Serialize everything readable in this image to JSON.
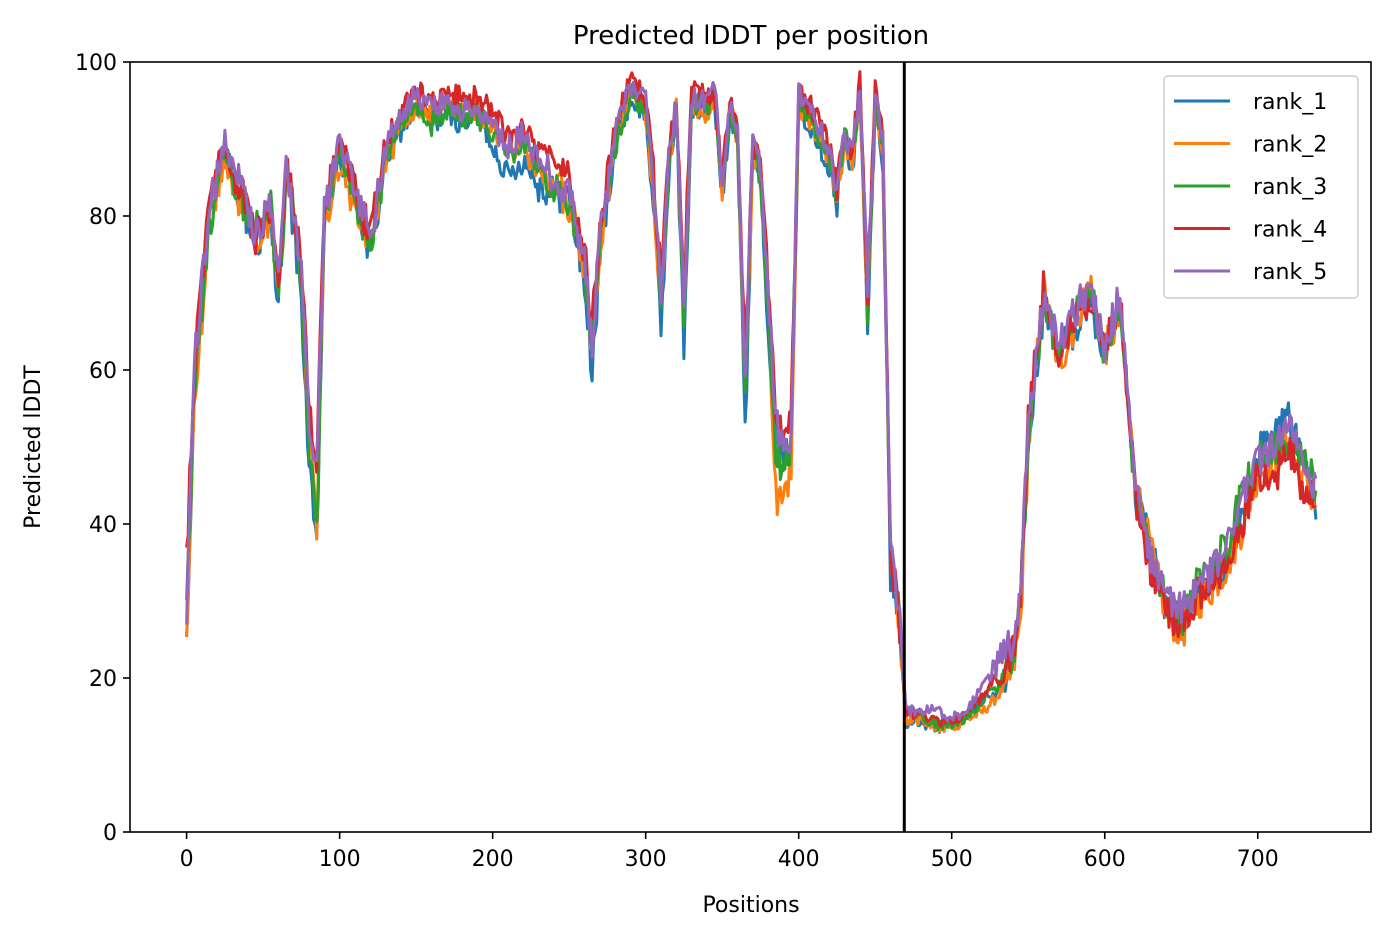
{
  "chart_data": {
    "type": "line",
    "title": "Predicted lDDT per position",
    "xlabel": "Positions",
    "ylabel": "Predicted lDDT",
    "xlim": [
      -37,
      774
    ],
    "ylim": [
      0,
      100
    ],
    "xticks": [
      0,
      100,
      200,
      300,
      400,
      500,
      600,
      700
    ],
    "yticks": [
      0,
      20,
      40,
      60,
      80,
      100
    ],
    "grid": false,
    "legend_position": "top-right",
    "vline_x": 469,
    "series": [
      {
        "name": "rank_1",
        "color": "#1f77b4",
        "offset": -0.8,
        "x": [
          0,
          5,
          15,
          25,
          35,
          45,
          55,
          60,
          65,
          70,
          75,
          80,
          85,
          90,
          95,
          100,
          110,
          120,
          130,
          140,
          150,
          160,
          170,
          180,
          190,
          200,
          210,
          220,
          230,
          240,
          250,
          260,
          265,
          270,
          280,
          290,
          300,
          305,
          310,
          315,
          320,
          325,
          330,
          340,
          345,
          350,
          355,
          360,
          365,
          370,
          375,
          380,
          385,
          390,
          395,
          400,
          410,
          420,
          425,
          430,
          435,
          440,
          445,
          450,
          455,
          460,
          465,
          470,
          480,
          490,
          500,
          510,
          520,
          530,
          540,
          545,
          550,
          560,
          570,
          580,
          590,
          600,
          610,
          620,
          630,
          640,
          650,
          660,
          670,
          680,
          690,
          700,
          710,
          720,
          730,
          738
        ],
        "y": [
          24,
          57,
          82,
          89,
          83,
          77,
          80,
          70,
          86,
          79,
          70,
          48,
          37,
          80,
          84,
          88,
          84,
          75,
          88,
          92,
          95,
          93,
          94,
          93,
          94,
          90,
          86,
          88,
          85,
          84,
          83,
          72,
          60,
          75,
          90,
          96,
          94,
          82,
          66,
          86,
          94,
          64,
          95,
          94,
          96,
          83,
          94,
          92,
          52,
          90,
          86,
          67,
          53,
          48,
          52,
          95,
          92,
          87,
          82,
          90,
          87,
          96,
          66,
          95,
          88,
          34,
          30,
          15,
          15,
          14,
          15,
          16,
          18,
          19,
          23,
          32,
          52,
          68,
          63,
          66,
          70,
          62,
          68,
          44,
          38,
          30,
          28,
          31,
          33,
          36,
          42,
          50,
          52,
          55,
          48,
          42
        ]
      },
      {
        "name": "rank_2",
        "color": "#ff7f0e",
        "offset": -0.4,
        "x": [
          0,
          5,
          15,
          25,
          35,
          45,
          55,
          60,
          65,
          70,
          75,
          80,
          85,
          90,
          95,
          100,
          110,
          120,
          130,
          140,
          150,
          160,
          170,
          180,
          190,
          200,
          210,
          220,
          230,
          240,
          250,
          260,
          265,
          270,
          280,
          290,
          300,
          305,
          310,
          315,
          320,
          325,
          330,
          340,
          345,
          350,
          355,
          360,
          365,
          370,
          375,
          380,
          385,
          390,
          395,
          400,
          410,
          420,
          425,
          430,
          435,
          440,
          445,
          450,
          455,
          460,
          465,
          470,
          480,
          490,
          500,
          510,
          520,
          530,
          540,
          545,
          550,
          560,
          570,
          580,
          590,
          600,
          610,
          620,
          630,
          640,
          650,
          660,
          670,
          680,
          690,
          700,
          710,
          720,
          730,
          738
        ],
        "y": [
          27,
          55,
          80,
          88,
          82,
          76,
          80,
          72,
          85,
          80,
          72,
          52,
          40,
          79,
          84,
          87,
          82,
          76,
          87,
          92,
          95,
          93,
          95,
          94,
          94,
          92,
          89,
          89,
          86,
          85,
          82,
          74,
          63,
          76,
          90,
          96,
          94,
          83,
          70,
          87,
          94,
          69,
          95,
          94,
          96,
          84,
          94,
          91,
          58,
          88,
          86,
          70,
          44,
          42,
          48,
          95,
          92,
          88,
          83,
          90,
          87,
          96,
          69,
          95,
          89,
          36,
          29,
          15,
          15,
          14,
          14,
          15,
          16,
          18,
          21,
          28,
          50,
          71,
          61,
          66,
          72,
          63,
          67,
          46,
          37,
          29,
          26,
          30,
          32,
          35,
          40,
          47,
          48,
          51,
          46,
          43
        ]
      },
      {
        "name": "rank_3",
        "color": "#2ca02c",
        "offset": 0,
        "x": [
          0,
          5,
          15,
          25,
          35,
          45,
          55,
          60,
          65,
          70,
          75,
          80,
          85,
          90,
          95,
          100,
          110,
          120,
          130,
          140,
          150,
          160,
          170,
          180,
          190,
          200,
          210,
          220,
          230,
          240,
          250,
          260,
          265,
          270,
          280,
          290,
          300,
          305,
          310,
          315,
          320,
          325,
          330,
          340,
          345,
          350,
          355,
          360,
          365,
          370,
          375,
          380,
          385,
          390,
          395,
          400,
          410,
          420,
          425,
          430,
          435,
          440,
          445,
          450,
          455,
          460,
          465,
          470,
          480,
          490,
          500,
          510,
          520,
          530,
          540,
          545,
          550,
          560,
          570,
          580,
          590,
          600,
          610,
          620,
          630,
          640,
          650,
          660,
          670,
          680,
          690,
          700,
          710,
          720,
          730,
          738
        ],
        "y": [
          30,
          58,
          79,
          89,
          82,
          78,
          81,
          70,
          84,
          81,
          71,
          50,
          38,
          81,
          84,
          89,
          83,
          75,
          88,
          92,
          94,
          92,
          94,
          93,
          93,
          91,
          87,
          90,
          86,
          84,
          82,
          73,
          62,
          77,
          89,
          96,
          94,
          84,
          68,
          86,
          94,
          67,
          95,
          94,
          96,
          84,
          93,
          91,
          55,
          89,
          85,
          68,
          50,
          46,
          50,
          95,
          92,
          88,
          83,
          91,
          88,
          96,
          68,
          95,
          89,
          37,
          31,
          16,
          15,
          14,
          14,
          15,
          17,
          19,
          22,
          30,
          51,
          69,
          62,
          67,
          71,
          62,
          69,
          44,
          36,
          30,
          27,
          32,
          35,
          37,
          44,
          48,
          50,
          49,
          50,
          44
        ]
      },
      {
        "name": "rank_4",
        "color": "#d62728",
        "offset": 0.4,
        "x": [
          0,
          5,
          15,
          25,
          35,
          45,
          55,
          60,
          65,
          70,
          75,
          80,
          85,
          90,
          95,
          100,
          110,
          120,
          130,
          140,
          150,
          160,
          170,
          180,
          190,
          200,
          210,
          220,
          230,
          240,
          250,
          260,
          265,
          270,
          280,
          290,
          300,
          305,
          310,
          315,
          320,
          325,
          330,
          340,
          345,
          350,
          355,
          360,
          365,
          370,
          375,
          380,
          385,
          390,
          395,
          400,
          410,
          420,
          425,
          430,
          435,
          440,
          445,
          450,
          455,
          460,
          465,
          470,
          480,
          490,
          500,
          510,
          520,
          530,
          540,
          545,
          550,
          560,
          570,
          580,
          590,
          600,
          610,
          620,
          630,
          640,
          650,
          660,
          670,
          680,
          690,
          700,
          710,
          720,
          730,
          738
        ],
        "y": [
          35,
          60,
          83,
          89,
          83,
          77,
          81,
          71,
          86,
          81,
          73,
          55,
          47,
          81,
          85,
          90,
          83,
          77,
          89,
          93,
          96,
          94,
          96,
          95,
          95,
          93,
          90,
          91,
          88,
          87,
          85,
          75,
          65,
          78,
          91,
          97,
          95,
          85,
          71,
          88,
          95,
          70,
          96,
          95,
          96,
          85,
          94,
          91,
          60,
          89,
          87,
          70,
          55,
          50,
          53,
          96,
          93,
          89,
          84,
          91,
          88,
          97,
          70,
          96,
          90,
          35,
          29,
          15,
          15,
          14,
          14,
          15,
          17,
          20,
          23,
          30,
          53,
          70,
          62,
          66,
          69,
          62,
          69,
          43,
          34,
          29,
          26,
          30,
          32,
          35,
          40,
          46,
          45,
          50,
          44,
          42
        ]
      },
      {
        "name": "rank_5",
        "color": "#9467bd",
        "offset": 0.8,
        "x": [
          0,
          5,
          15,
          25,
          35,
          45,
          55,
          60,
          65,
          70,
          75,
          80,
          85,
          90,
          95,
          100,
          110,
          120,
          130,
          140,
          150,
          160,
          170,
          180,
          190,
          200,
          210,
          220,
          230,
          240,
          250,
          260,
          265,
          270,
          280,
          290,
          300,
          305,
          310,
          315,
          320,
          325,
          330,
          340,
          345,
          350,
          355,
          360,
          365,
          370,
          375,
          380,
          385,
          390,
          395,
          400,
          410,
          420,
          425,
          430,
          435,
          440,
          445,
          450,
          455,
          460,
          465,
          470,
          480,
          490,
          500,
          510,
          520,
          530,
          540,
          545,
          550,
          560,
          570,
          580,
          590,
          600,
          610,
          620,
          630,
          640,
          650,
          660,
          670,
          680,
          690,
          700,
          710,
          720,
          730,
          738
        ],
        "y": [
          28,
          60,
          80,
          89,
          83,
          77,
          81,
          70,
          86,
          80,
          72,
          53,
          46,
          80,
          84,
          89,
          83,
          76,
          88,
          92,
          95,
          93,
          94,
          93,
          93,
          91,
          88,
          90,
          86,
          84,
          82,
          73,
          63,
          76,
          90,
          96,
          94,
          84,
          70,
          87,
          94,
          68,
          95,
          94,
          96,
          84,
          93,
          91,
          58,
          89,
          86,
          70,
          53,
          48,
          51,
          95,
          92,
          88,
          83,
          90,
          87,
          96,
          69,
          95,
          89,
          35,
          30,
          15,
          15,
          15,
          14,
          15,
          18,
          21,
          24,
          31,
          52,
          69,
          62,
          67,
          70,
          62,
          69,
          44,
          35,
          30,
          28,
          31,
          33,
          36,
          43,
          47,
          49,
          52,
          47,
          44
        ]
      }
    ]
  }
}
